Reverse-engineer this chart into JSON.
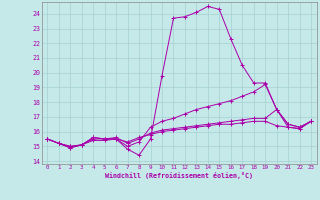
{
  "xlabel": "Windchill (Refroidissement éolien,°C)",
  "bg_color": "#c5e8e8",
  "grid_color": "#aad4d4",
  "line_color": "#aa00aa",
  "xlim": [
    -0.5,
    23.5
  ],
  "ylim": [
    13.8,
    24.8
  ],
  "yticks": [
    14,
    15,
    16,
    17,
    18,
    19,
    20,
    21,
    22,
    23,
    24
  ],
  "xticks": [
    0,
    1,
    2,
    3,
    4,
    5,
    6,
    7,
    8,
    9,
    10,
    11,
    12,
    13,
    14,
    15,
    16,
    17,
    18,
    19,
    20,
    21,
    22,
    23
  ],
  "lines": [
    {
      "x": [
        0,
        1,
        2,
        3,
        4,
        5,
        6,
        7,
        8,
        9,
        10,
        11,
        12,
        13,
        14,
        15,
        16,
        17,
        18,
        19,
        20,
        21,
        22,
        23
      ],
      "y": [
        15.5,
        15.2,
        14.9,
        15.1,
        15.6,
        15.5,
        15.5,
        14.8,
        14.4,
        15.5,
        19.8,
        23.7,
        23.8,
        24.1,
        24.5,
        24.3,
        22.3,
        20.5,
        19.3,
        19.3,
        17.5,
        16.5,
        16.3,
        16.7
      ]
    },
    {
      "x": [
        0,
        1,
        2,
        3,
        4,
        5,
        6,
        7,
        8,
        9,
        10,
        11,
        12,
        13,
        14,
        15,
        16,
        17,
        18,
        19,
        20,
        21,
        22,
        23
      ],
      "y": [
        15.5,
        15.2,
        14.9,
        15.1,
        15.6,
        15.5,
        15.5,
        15.0,
        15.3,
        16.3,
        16.7,
        16.9,
        17.2,
        17.5,
        17.7,
        17.9,
        18.1,
        18.4,
        18.7,
        19.2,
        17.5,
        16.5,
        16.3,
        16.7
      ]
    },
    {
      "x": [
        0,
        1,
        2,
        3,
        4,
        5,
        6,
        7,
        8,
        9,
        10,
        11,
        12,
        13,
        14,
        15,
        16,
        17,
        18,
        19,
        20,
        21,
        22,
        23
      ],
      "y": [
        15.5,
        15.2,
        15.0,
        15.1,
        15.5,
        15.5,
        15.6,
        15.2,
        15.5,
        15.9,
        16.1,
        16.2,
        16.3,
        16.4,
        16.5,
        16.6,
        16.7,
        16.8,
        16.9,
        16.9,
        17.5,
        16.3,
        16.2,
        16.7
      ]
    },
    {
      "x": [
        0,
        1,
        2,
        3,
        4,
        5,
        6,
        7,
        8,
        9,
        10,
        11,
        12,
        13,
        14,
        15,
        16,
        17,
        18,
        19,
        20,
        21,
        22,
        23
      ],
      "y": [
        15.5,
        15.2,
        15.0,
        15.1,
        15.4,
        15.4,
        15.5,
        15.3,
        15.6,
        15.8,
        16.0,
        16.1,
        16.2,
        16.3,
        16.4,
        16.5,
        16.5,
        16.6,
        16.7,
        16.7,
        16.4,
        16.3,
        16.2,
        16.7
      ]
    }
  ]
}
